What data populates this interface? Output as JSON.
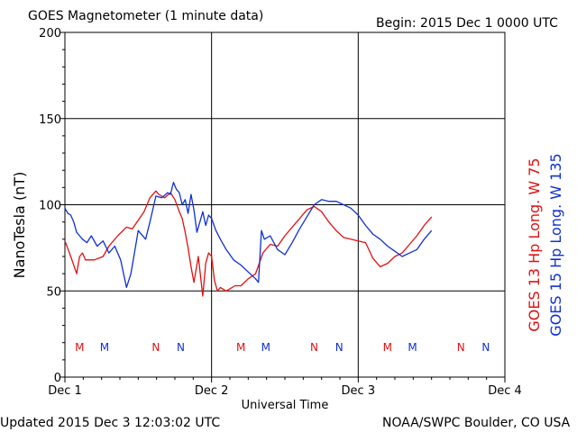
{
  "header": {
    "title": "GOES Magnetometer (1 minute data)",
    "begin": "Begin:  2015 Dec 1 0000 UTC"
  },
  "footer": {
    "updated": "Updated 2015 Dec  3 12:03:02 UTC",
    "credit": "NOAA/SWPC Boulder, CO USA"
  },
  "chart_data": {
    "type": "line",
    "title": "GOES Magnetometer (1 minute data)",
    "xlabel": "Universal Time",
    "ylabel": "NanoTesla (nT)",
    "ylim": [
      0,
      200
    ],
    "xlim_days": [
      0,
      3
    ],
    "x_unit": "days since 2015 Dec 1 0000 UTC",
    "x_tick_labels": [
      "Dec 1",
      "Dec 2",
      "Dec 3",
      "Dec 4"
    ],
    "y_tick_labels": [
      "0",
      "50",
      "100",
      "150",
      "200"
    ],
    "grid": true,
    "legend": {
      "position": "right-vertical",
      "entries": [
        "GOES 13 Hp  Long. W 75",
        "GOES 15 Hp  Long. W 135"
      ]
    },
    "colors": {
      "goes13": "#e01010",
      "goes15": "#1030d0"
    },
    "series": [
      {
        "name": "GOES 13 Hp  Long. W 75",
        "color": "#e01010",
        "x": [
          0.0,
          0.04,
          0.08,
          0.1,
          0.12,
          0.14,
          0.2,
          0.26,
          0.3,
          0.36,
          0.42,
          0.46,
          0.5,
          0.54,
          0.58,
          0.62,
          0.64,
          0.68,
          0.72,
          0.75,
          0.78,
          0.8,
          0.82,
          0.84,
          0.86,
          0.88,
          0.91,
          0.94,
          0.96,
          0.98,
          1.0,
          1.02,
          1.04,
          1.06,
          1.1,
          1.16,
          1.2,
          1.25,
          1.3,
          1.35,
          1.4,
          1.45,
          1.5,
          1.55,
          1.6,
          1.65,
          1.7,
          1.75,
          1.8,
          1.85,
          1.9,
          1.95,
          2.0,
          2.05,
          2.1,
          2.15,
          2.2,
          2.25,
          2.3,
          2.35,
          2.4,
          2.45,
          2.5
        ],
        "values": [
          79,
          70,
          60,
          70,
          72,
          68,
          68,
          70,
          76,
          82,
          87,
          86,
          91,
          96,
          104,
          108,
          106,
          104,
          107,
          103,
          96,
          92,
          84,
          75,
          64,
          55,
          70,
          47,
          66,
          72,
          70,
          56,
          50,
          52,
          50,
          53,
          53,
          57,
          60,
          72,
          77,
          76,
          82,
          87,
          92,
          97,
          99,
          96,
          90,
          85,
          81,
          80,
          79,
          78,
          69,
          64,
          66,
          70,
          72,
          77,
          82,
          88,
          93
        ]
      },
      {
        "name": "GOES 15 Hp  Long. W 135",
        "color": "#1030d0",
        "x": [
          0.0,
          0.02,
          0.04,
          0.06,
          0.08,
          0.1,
          0.12,
          0.15,
          0.18,
          0.22,
          0.26,
          0.3,
          0.34,
          0.38,
          0.42,
          0.45,
          0.48,
          0.5,
          0.52,
          0.55,
          0.58,
          0.62,
          0.66,
          0.7,
          0.72,
          0.74,
          0.76,
          0.78,
          0.8,
          0.82,
          0.84,
          0.86,
          0.88,
          0.9,
          0.92,
          0.94,
          0.96,
          0.98,
          1.0,
          1.03,
          1.06,
          1.1,
          1.15,
          1.2,
          1.25,
          1.3,
          1.32,
          1.34,
          1.36,
          1.4,
          1.45,
          1.5,
          1.55,
          1.6,
          1.65,
          1.7,
          1.75,
          1.8,
          1.85,
          1.9,
          1.95,
          2.0,
          2.05,
          2.1,
          2.15,
          2.2,
          2.25,
          2.3,
          2.35,
          2.4,
          2.45,
          2.5
        ],
        "values": [
          98,
          95,
          94,
          90,
          84,
          82,
          80,
          78,
          82,
          76,
          79,
          72,
          76,
          68,
          52,
          60,
          75,
          85,
          83,
          80,
          90,
          105,
          104,
          107,
          106,
          113,
          109,
          107,
          100,
          103,
          95,
          106,
          97,
          84,
          90,
          96,
          88,
          94,
          92,
          85,
          80,
          74,
          68,
          65,
          61,
          57,
          55,
          85,
          80,
          82,
          74,
          71,
          78,
          86,
          93,
          100,
          103,
          102,
          102,
          100,
          98,
          94,
          88,
          83,
          80,
          76,
          73,
          70,
          72,
          74,
          80,
          85
        ]
      }
    ],
    "markers": {
      "goes13": {
        "label": "M",
        "label2": "N",
        "color": "#e01010",
        "M_days": [
          0.1,
          1.2,
          2.2
        ],
        "N_days": [
          0.62,
          1.7,
          2.7
        ]
      },
      "goes15": {
        "label": "M",
        "label2": "N",
        "color": "#1030d0",
        "M_days": [
          0.27,
          1.37,
          2.37
        ],
        "N_days": [
          0.79,
          1.87,
          2.87
        ]
      }
    }
  }
}
